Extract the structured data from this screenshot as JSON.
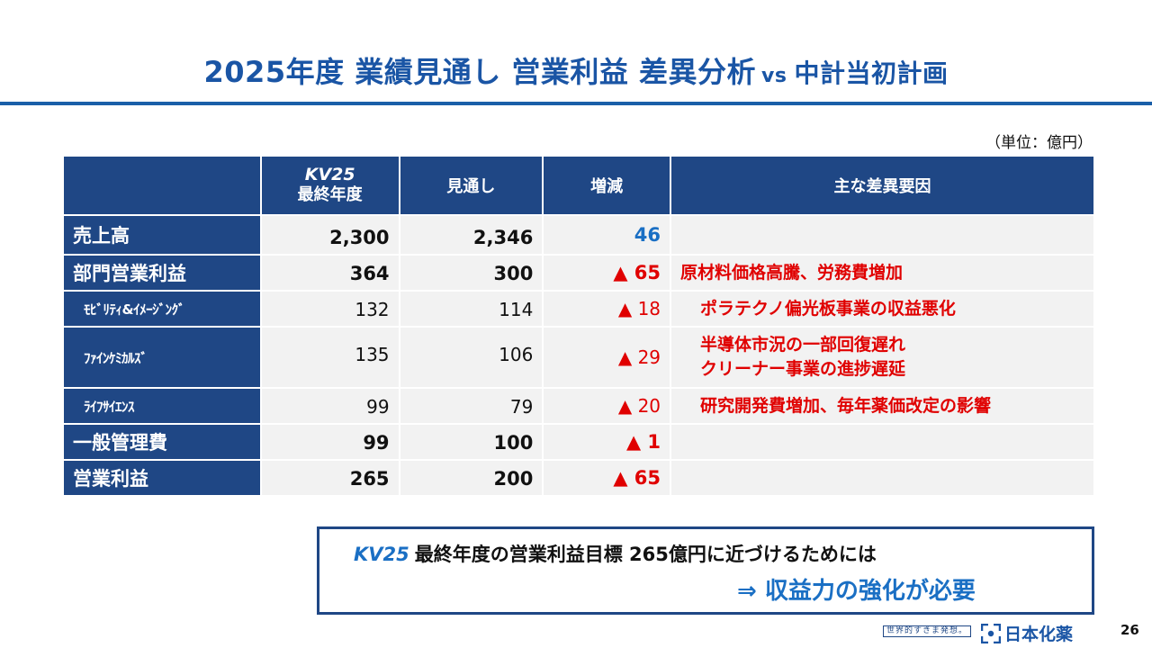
{
  "title": {
    "main": "2025年度 業績見通し 営業利益 差異分析",
    "vs": "vs",
    "vs_target": "中計当初計画"
  },
  "unit_note": "（単位：億円）",
  "table": {
    "headers": {
      "kv_top": "KV25",
      "kv_sub": "最終年度",
      "forecast": "見通し",
      "change": "増減",
      "factors": "主な差異要因"
    },
    "rows": [
      {
        "label": "売上高",
        "kv25": "2,300",
        "forecast": "2,346",
        "change": "46",
        "reason": ""
      },
      {
        "label": "部門営業利益",
        "kv25": "364",
        "forecast": "300",
        "change": "▲ 65",
        "reason": "原材料価格高騰、労務費増加"
      },
      {
        "label": "ﾓﾋﾞﾘﾃｨ&ｲﾒｰｼﾞﾝｸﾞ",
        "kv25": "132",
        "forecast": "114",
        "change": "▲ 18",
        "reason": "ポラテクノ偏光板事業の収益悪化"
      },
      {
        "label": "ﾌｧｲﾝｹﾐｶﾙｽﾞ",
        "kv25": "135",
        "forecast": "106",
        "change": "▲ 29",
        "reason_line1": "半導体市況の一部回復遅れ",
        "reason_line2": "クリーナー事業の進捗遅延"
      },
      {
        "label": "ﾗｲﾌｻｲｴﾝｽ",
        "kv25": "99",
        "forecast": "79",
        "change": "▲ 20",
        "reason": "研究開発費増加、毎年薬価改定の影響"
      },
      {
        "label": "一般管理費",
        "kv25": "99",
        "forecast": "100",
        "change": "▲ 1",
        "reason": ""
      },
      {
        "label": "営業利益",
        "kv25": "265",
        "forecast": "200",
        "change": "▲ 65",
        "reason": ""
      }
    ]
  },
  "callout": {
    "kv": "KV25",
    "line1": "最終年度の営業利益目標 265億円に近づけるためには",
    "line2": "⇒ 収益力の強化が必要"
  },
  "footer": {
    "tagline": "世界的すきま発想。",
    "logo_text": "日本化薬",
    "page_number": "26"
  },
  "colors": {
    "title_blue": "#1a55a5",
    "header_navy": "#1f4785",
    "negative_red": "#e00000",
    "positive_blue": "#1a6fc4",
    "cell_gray": "#f2f2f2"
  }
}
